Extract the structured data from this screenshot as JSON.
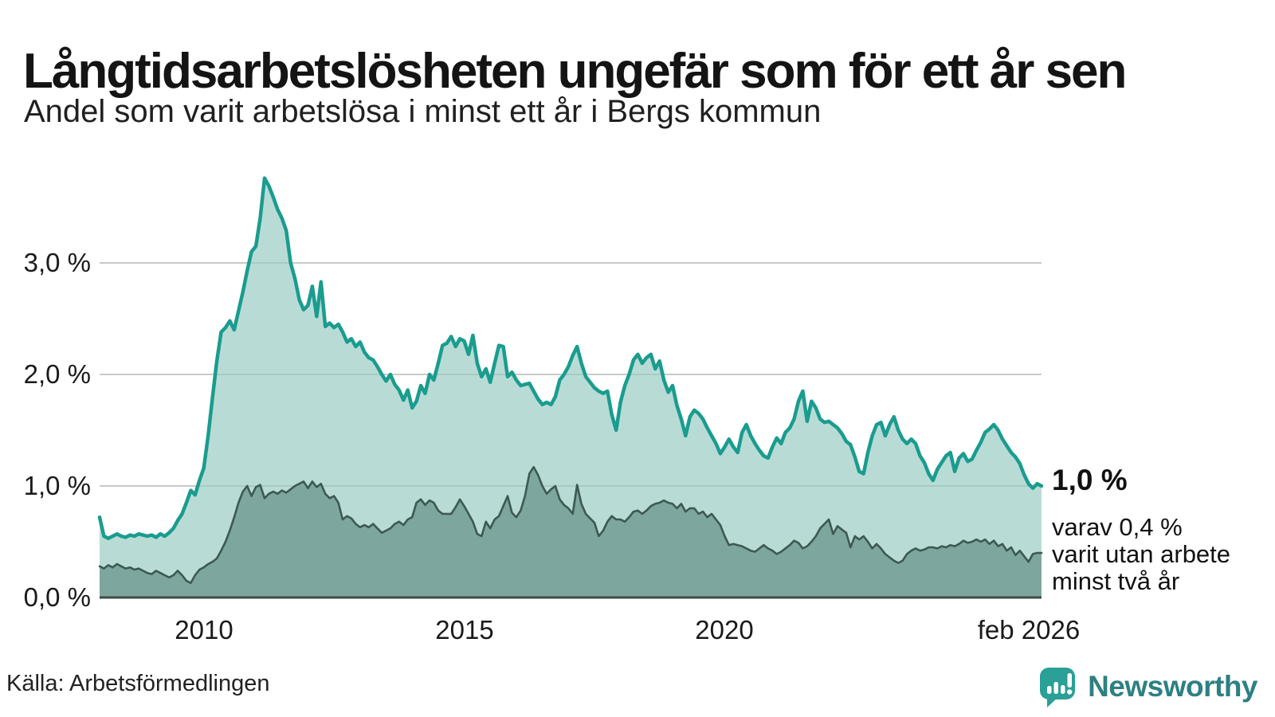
{
  "header": {
    "title": "Långtidsarbetslösheten ungefär som för ett år sen",
    "subtitle": "Andel som varit arbetslösa i minst ett år i Bergs kommun"
  },
  "annotations": {
    "latest_value_label": "1,0 %",
    "secondary_note_lines": [
      "varav 0,4 %",
      "varit utan arbete",
      "minst två år"
    ]
  },
  "footer": {
    "source": "Källa: Arbetsförmedlingen",
    "brand": "Newsworthy"
  },
  "colors": {
    "series1_line": "#1a9c8f",
    "series1_fill": "#b8dcd5",
    "series2_line": "#3c5953",
    "series2_fill": "#7da69e",
    "gridline": "#dddddd",
    "gridline_overlay": "rgba(70,90,90,0.14)",
    "baseline": "#3f4a46",
    "brand_teal": "#2aa096",
    "brand_text": "#2e8081"
  },
  "chart_data": {
    "type": "area",
    "title": "Andel som varit arbetslösa i minst ett år i Bergs kommun",
    "unit": "%",
    "frequency": "monthly",
    "x_start": "2008-01",
    "x_end": "2026-02",
    "ylim": [
      0,
      3.9
    ],
    "grid": true,
    "yticks": [
      {
        "label": "0,0 %",
        "value": 0.0
      },
      {
        "label": "1,0 %",
        "value": 1.0
      },
      {
        "label": "2,0 %",
        "value": 2.0
      },
      {
        "label": "3,0 %",
        "value": 3.0
      }
    ],
    "xticks": [
      {
        "label": "2010",
        "month_index": 24
      },
      {
        "label": "2015",
        "month_index": 84
      },
      {
        "label": "2020",
        "month_index": 144
      },
      {
        "label": "feb 2026",
        "month_index": 214
      }
    ],
    "series": [
      {
        "name": "Andel arbetslösa minst ett år",
        "latest_value": 1.0,
        "values": [
          0.72,
          0.55,
          0.53,
          0.55,
          0.57,
          0.55,
          0.54,
          0.56,
          0.55,
          0.57,
          0.56,
          0.55,
          0.56,
          0.54,
          0.57,
          0.55,
          0.58,
          0.62,
          0.69,
          0.75,
          0.85,
          0.96,
          0.92,
          1.05,
          1.16,
          1.45,
          1.79,
          2.12,
          2.38,
          2.42,
          2.48,
          2.4,
          2.57,
          2.74,
          2.93,
          3.1,
          3.15,
          3.4,
          3.76,
          3.69,
          3.59,
          3.48,
          3.4,
          3.29,
          3.0,
          2.86,
          2.67,
          2.58,
          2.62,
          2.79,
          2.52,
          2.83,
          2.43,
          2.46,
          2.42,
          2.45,
          2.38,
          2.29,
          2.32,
          2.25,
          2.29,
          2.2,
          2.15,
          2.13,
          2.07,
          2.0,
          1.94,
          2.0,
          1.91,
          1.86,
          1.77,
          1.86,
          1.7,
          1.76,
          1.9,
          1.83,
          2.0,
          1.95,
          2.1,
          2.26,
          2.28,
          2.34,
          2.25,
          2.32,
          2.3,
          2.18,
          2.35,
          2.1,
          1.98,
          2.05,
          1.93,
          2.1,
          2.26,
          2.25,
          1.98,
          2.02,
          1.95,
          1.9,
          1.91,
          1.92,
          1.85,
          1.78,
          1.73,
          1.75,
          1.73,
          1.8,
          1.95,
          2.0,
          2.07,
          2.17,
          2.25,
          2.1,
          1.98,
          1.93,
          1.88,
          1.85,
          1.83,
          1.85,
          1.64,
          1.5,
          1.75,
          1.9,
          2.0,
          2.13,
          2.18,
          2.1,
          2.15,
          2.18,
          2.05,
          2.12,
          1.95,
          1.84,
          1.9,
          1.72,
          1.6,
          1.45,
          1.62,
          1.68,
          1.65,
          1.6,
          1.52,
          1.45,
          1.38,
          1.29,
          1.35,
          1.42,
          1.35,
          1.3,
          1.48,
          1.55,
          1.45,
          1.38,
          1.32,
          1.27,
          1.25,
          1.35,
          1.43,
          1.38,
          1.48,
          1.52,
          1.6,
          1.76,
          1.85,
          1.58,
          1.76,
          1.7,
          1.6,
          1.57,
          1.58,
          1.55,
          1.52,
          1.47,
          1.4,
          1.37,
          1.26,
          1.13,
          1.11,
          1.3,
          1.45,
          1.55,
          1.57,
          1.45,
          1.55,
          1.62,
          1.5,
          1.42,
          1.38,
          1.42,
          1.38,
          1.27,
          1.21,
          1.11,
          1.05,
          1.15,
          1.21,
          1.27,
          1.3,
          1.13,
          1.25,
          1.29,
          1.22,
          1.24,
          1.32,
          1.39,
          1.48,
          1.51,
          1.55,
          1.5,
          1.42,
          1.36,
          1.3,
          1.26,
          1.2,
          1.1,
          1.02,
          0.98,
          1.02,
          1.0
        ]
      },
      {
        "name": "varav utan arbete minst två år",
        "latest_value": 0.4,
        "values": [
          0.28,
          0.26,
          0.29,
          0.27,
          0.3,
          0.28,
          0.26,
          0.27,
          0.25,
          0.26,
          0.24,
          0.22,
          0.21,
          0.24,
          0.22,
          0.2,
          0.18,
          0.2,
          0.24,
          0.2,
          0.15,
          0.13,
          0.2,
          0.25,
          0.27,
          0.3,
          0.32,
          0.35,
          0.42,
          0.5,
          0.6,
          0.72,
          0.85,
          0.95,
          1.0,
          0.91,
          0.99,
          1.01,
          0.89,
          0.93,
          0.95,
          0.93,
          0.96,
          0.94,
          0.97,
          1.0,
          1.02,
          1.04,
          0.98,
          1.04,
          0.99,
          1.02,
          0.93,
          0.89,
          0.91,
          0.85,
          0.7,
          0.73,
          0.71,
          0.66,
          0.63,
          0.65,
          0.63,
          0.66,
          0.62,
          0.58,
          0.6,
          0.62,
          0.66,
          0.68,
          0.65,
          0.7,
          0.72,
          0.85,
          0.88,
          0.83,
          0.87,
          0.85,
          0.78,
          0.75,
          0.75,
          0.75,
          0.81,
          0.88,
          0.82,
          0.75,
          0.68,
          0.57,
          0.55,
          0.68,
          0.62,
          0.7,
          0.73,
          0.82,
          0.91,
          0.76,
          0.72,
          0.78,
          0.91,
          1.11,
          1.17,
          1.1,
          1.0,
          0.93,
          0.97,
          1.0,
          0.88,
          0.83,
          0.8,
          0.75,
          1.01,
          0.84,
          0.75,
          0.71,
          0.67,
          0.55,
          0.6,
          0.68,
          0.73,
          0.7,
          0.7,
          0.68,
          0.72,
          0.77,
          0.78,
          0.75,
          0.78,
          0.82,
          0.84,
          0.85,
          0.87,
          0.85,
          0.84,
          0.8,
          0.84,
          0.77,
          0.8,
          0.8,
          0.75,
          0.77,
          0.72,
          0.75,
          0.7,
          0.65,
          0.55,
          0.47,
          0.48,
          0.47,
          0.46,
          0.44,
          0.42,
          0.41,
          0.44,
          0.47,
          0.44,
          0.42,
          0.39,
          0.41,
          0.44,
          0.47,
          0.51,
          0.49,
          0.44,
          0.46,
          0.5,
          0.55,
          0.62,
          0.66,
          0.7,
          0.57,
          0.64,
          0.61,
          0.58,
          0.45,
          0.55,
          0.52,
          0.55,
          0.5,
          0.44,
          0.48,
          0.44,
          0.39,
          0.36,
          0.33,
          0.31,
          0.33,
          0.39,
          0.42,
          0.44,
          0.42,
          0.43,
          0.45,
          0.45,
          0.44,
          0.46,
          0.45,
          0.47,
          0.46,
          0.48,
          0.51,
          0.49,
          0.5,
          0.52,
          0.5,
          0.52,
          0.48,
          0.51,
          0.46,
          0.48,
          0.42,
          0.45,
          0.38,
          0.42,
          0.37,
          0.32,
          0.39,
          0.4,
          0.4
        ]
      }
    ],
    "legend_position": "none"
  }
}
